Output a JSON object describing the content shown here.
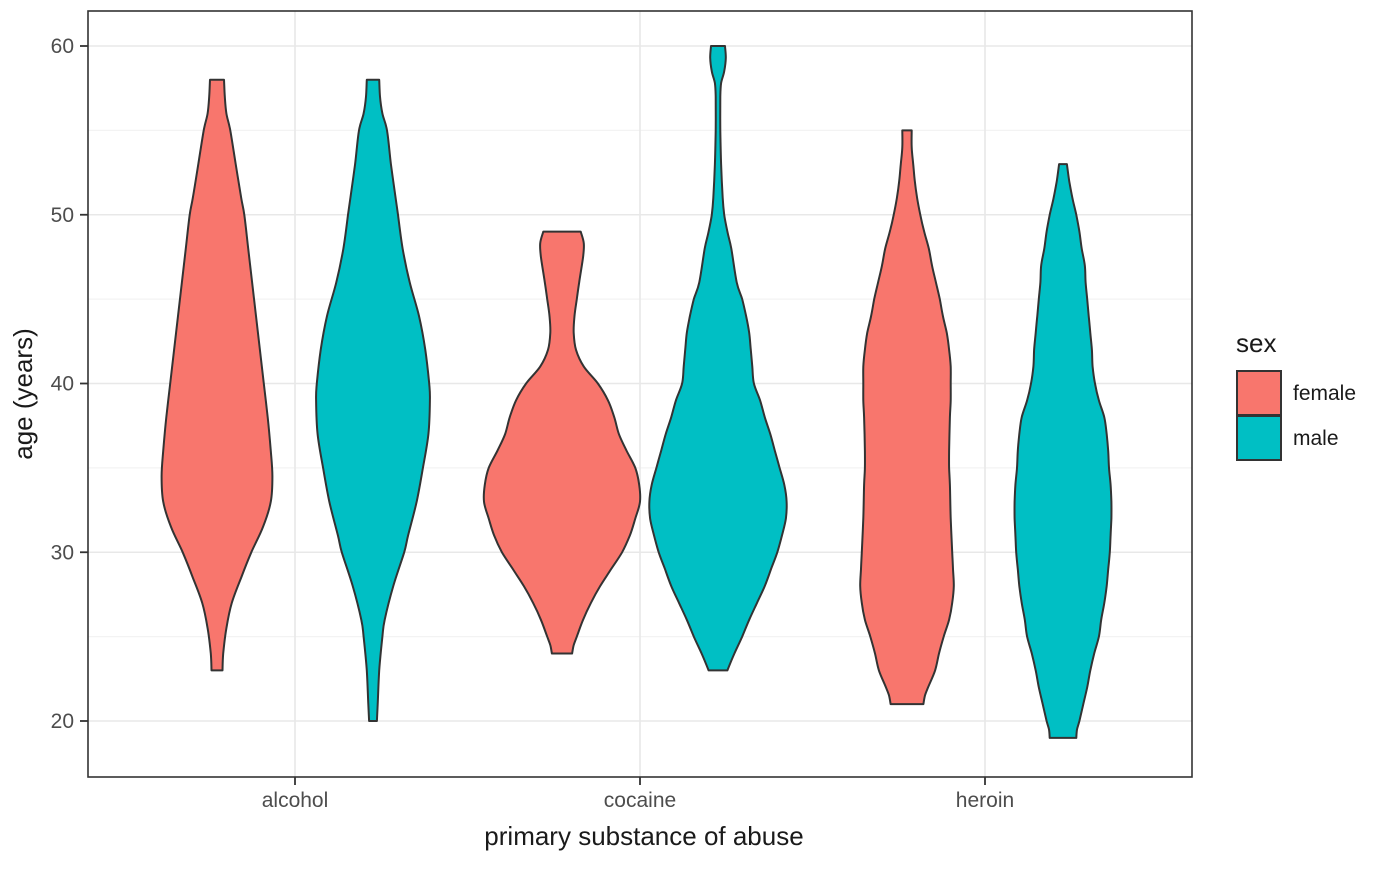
{
  "figure": {
    "x_axis_title": "primary substance of abuse",
    "y_axis_title": "age (years)"
  },
  "legend": {
    "title": "sex",
    "items": [
      {
        "label": "female",
        "color": "#F8766D"
      },
      {
        "label": "male",
        "color": "#00BFC4"
      }
    ]
  },
  "chart_data": {
    "type": "violin",
    "title": "",
    "xlabel": "primary substance of abuse",
    "ylabel": "age (years)",
    "categories": [
      "alcohol",
      "cocaine",
      "heroin"
    ],
    "y_ticks": [
      20,
      30,
      40,
      50,
      60
    ],
    "y_minor_ticks": [
      25,
      35,
      45,
      55
    ],
    "ylim": [
      16.7,
      62.1
    ],
    "grid": "horizontal major+minor, vertical at categories",
    "legend_position": "right",
    "colors": {
      "female": "#F8766D",
      "male": "#00BFC4"
    },
    "outline_color": "#333333",
    "panel_background": "#ffffff",
    "grid_major_color": "#e8e8e8",
    "grid_minor_color": "#f3f3f3",
    "series": [
      {
        "category": "alcohol",
        "sex": "female",
        "age_min": 23,
        "age_max": 58,
        "profile": [
          [
            58,
            0.09
          ],
          [
            57,
            0.1
          ],
          [
            56,
            0.12
          ],
          [
            55,
            0.17
          ],
          [
            53,
            0.24
          ],
          [
            51,
            0.31
          ],
          [
            50,
            0.35
          ],
          [
            48,
            0.4
          ],
          [
            46,
            0.45
          ],
          [
            44,
            0.5
          ],
          [
            42,
            0.55
          ],
          [
            40,
            0.6
          ],
          [
            38,
            0.65
          ],
          [
            36,
            0.69
          ],
          [
            34.5,
            0.71
          ],
          [
            33,
            0.69
          ],
          [
            31.5,
            0.59
          ],
          [
            30,
            0.44
          ],
          [
            28.5,
            0.31
          ],
          [
            27,
            0.19
          ],
          [
            25.5,
            0.12
          ],
          [
            24,
            0.08
          ],
          [
            23,
            0.07
          ]
        ]
      },
      {
        "category": "alcohol",
        "sex": "male",
        "age_min": 20,
        "age_max": 58,
        "profile": [
          [
            58,
            0.08
          ],
          [
            57,
            0.09
          ],
          [
            56,
            0.12
          ],
          [
            55,
            0.18
          ],
          [
            53,
            0.23
          ],
          [
            51,
            0.29
          ],
          [
            50,
            0.32
          ],
          [
            48,
            0.38
          ],
          [
            46,
            0.47
          ],
          [
            44,
            0.59
          ],
          [
            42,
            0.67
          ],
          [
            40,
            0.72
          ],
          [
            39,
            0.73
          ],
          [
            37,
            0.71
          ],
          [
            35,
            0.64
          ],
          [
            33,
            0.56
          ],
          [
            31,
            0.45
          ],
          [
            30,
            0.4
          ],
          [
            28,
            0.26
          ],
          [
            26,
            0.15
          ],
          [
            25,
            0.12
          ],
          [
            23,
            0.08
          ],
          [
            21,
            0.06
          ],
          [
            20,
            0.05
          ]
        ]
      },
      {
        "category": "cocaine",
        "sex": "female",
        "age_min": 24,
        "age_max": 49,
        "profile": [
          [
            49,
            0.24
          ],
          [
            48.3,
            0.28
          ],
          [
            47.5,
            0.27
          ],
          [
            46,
            0.22
          ],
          [
            45,
            0.19
          ],
          [
            44,
            0.16
          ],
          [
            43,
            0.15
          ],
          [
            42,
            0.18
          ],
          [
            41,
            0.28
          ],
          [
            40,
            0.46
          ],
          [
            39,
            0.59
          ],
          [
            38,
            0.67
          ],
          [
            37,
            0.73
          ],
          [
            36,
            0.83
          ],
          [
            35,
            0.94
          ],
          [
            34,
            0.99
          ],
          [
            33,
            1.0
          ],
          [
            32,
            0.94
          ],
          [
            31,
            0.87
          ],
          [
            30,
            0.77
          ],
          [
            29,
            0.63
          ],
          [
            28,
            0.49
          ],
          [
            27,
            0.37
          ],
          [
            26,
            0.27
          ],
          [
            25,
            0.19
          ],
          [
            24.5,
            0.15
          ],
          [
            24,
            0.13
          ]
        ]
      },
      {
        "category": "cocaine",
        "sex": "male",
        "age_min": 23,
        "age_max": 60,
        "profile": [
          [
            60,
            0.09
          ],
          [
            59.3,
            0.1
          ],
          [
            58.5,
            0.08
          ],
          [
            57.8,
            0.04
          ],
          [
            57,
            0.03
          ],
          [
            55,
            0.03
          ],
          [
            53,
            0.04
          ],
          [
            51,
            0.06
          ],
          [
            50,
            0.08
          ],
          [
            49,
            0.12
          ],
          [
            48,
            0.17
          ],
          [
            46,
            0.24
          ],
          [
            45,
            0.31
          ],
          [
            44,
            0.36
          ],
          [
            43,
            0.4
          ],
          [
            42,
            0.42
          ],
          [
            41,
            0.44
          ],
          [
            40,
            0.46
          ],
          [
            39,
            0.54
          ],
          [
            38,
            0.6
          ],
          [
            37,
            0.67
          ],
          [
            36,
            0.73
          ],
          [
            35,
            0.79
          ],
          [
            34,
            0.85
          ],
          [
            33,
            0.88
          ],
          [
            32,
            0.87
          ],
          [
            31,
            0.82
          ],
          [
            30,
            0.76
          ],
          [
            29,
            0.68
          ],
          [
            28,
            0.6
          ],
          [
            27,
            0.5
          ],
          [
            26,
            0.4
          ],
          [
            25,
            0.31
          ],
          [
            24,
            0.21
          ],
          [
            23,
            0.12
          ]
        ]
      },
      {
        "category": "heroin",
        "sex": "female",
        "age_min": 21,
        "age_max": 55,
        "profile": [
          [
            55,
            0.06
          ],
          [
            54,
            0.06
          ],
          [
            53,
            0.08
          ],
          [
            52,
            0.1
          ],
          [
            51,
            0.13
          ],
          [
            50,
            0.17
          ],
          [
            49,
            0.22
          ],
          [
            48,
            0.28
          ],
          [
            47,
            0.32
          ],
          [
            46,
            0.37
          ],
          [
            45,
            0.42
          ],
          [
            44,
            0.46
          ],
          [
            43,
            0.51
          ],
          [
            42,
            0.54
          ],
          [
            41,
            0.56
          ],
          [
            40,
            0.56
          ],
          [
            39,
            0.56
          ],
          [
            38,
            0.55
          ],
          [
            36,
            0.54
          ],
          [
            35,
            0.54
          ],
          [
            34,
            0.55
          ],
          [
            32,
            0.56
          ],
          [
            30,
            0.58
          ],
          [
            29,
            0.59
          ],
          [
            28,
            0.6
          ],
          [
            27,
            0.58
          ],
          [
            26,
            0.54
          ],
          [
            25,
            0.47
          ],
          [
            24,
            0.41
          ],
          [
            23,
            0.36
          ],
          [
            22,
            0.27
          ],
          [
            21.5,
            0.23
          ],
          [
            21,
            0.21
          ]
        ]
      },
      {
        "category": "heroin",
        "sex": "male",
        "age_min": 19,
        "age_max": 53,
        "profile": [
          [
            53,
            0.05
          ],
          [
            52,
            0.08
          ],
          [
            51,
            0.12
          ],
          [
            50,
            0.17
          ],
          [
            49,
            0.21
          ],
          [
            48,
            0.24
          ],
          [
            47,
            0.28
          ],
          [
            46,
            0.29
          ],
          [
            45,
            0.31
          ],
          [
            44,
            0.33
          ],
          [
            43,
            0.35
          ],
          [
            42,
            0.37
          ],
          [
            41,
            0.38
          ],
          [
            40,
            0.41
          ],
          [
            39,
            0.46
          ],
          [
            38,
            0.53
          ],
          [
            37,
            0.56
          ],
          [
            36,
            0.58
          ],
          [
            35,
            0.59
          ],
          [
            34,
            0.61
          ],
          [
            33,
            0.62
          ],
          [
            32,
            0.62
          ],
          [
            31,
            0.61
          ],
          [
            30,
            0.6
          ],
          [
            29,
            0.58
          ],
          [
            28,
            0.56
          ],
          [
            27,
            0.53
          ],
          [
            26,
            0.49
          ],
          [
            25,
            0.46
          ],
          [
            24,
            0.4
          ],
          [
            23,
            0.35
          ],
          [
            22,
            0.31
          ],
          [
            21,
            0.26
          ],
          [
            20,
            0.21
          ],
          [
            19.5,
            0.18
          ],
          [
            19,
            0.17
          ]
        ]
      }
    ]
  }
}
